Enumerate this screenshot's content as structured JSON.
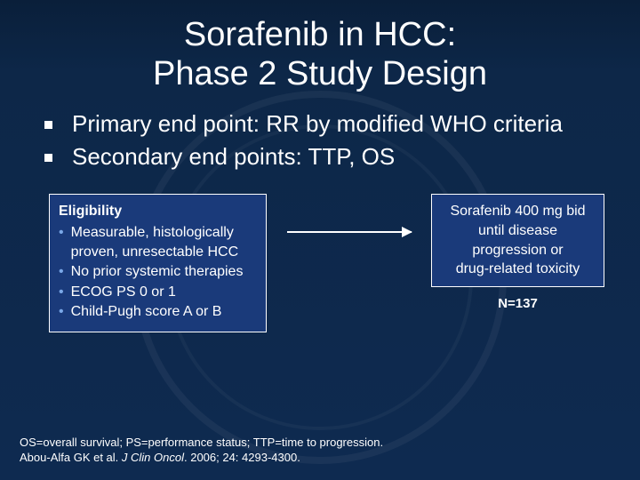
{
  "title_line1": "Sorafenib in HCC:",
  "title_line2": "Phase 2 Study Design",
  "bullets": [
    "Primary end point: RR by modified WHO criteria",
    "Secondary end points: TTP, OS"
  ],
  "eligibility": {
    "heading": "Eligibility",
    "items": [
      "Measurable, histologically proven, unresectable HCC",
      "No prior systemic therapies",
      "ECOG PS 0 or 1",
      "Child-Pugh score A or B"
    ]
  },
  "treatment": {
    "line1": "Sorafenib 400 mg bid",
    "line2": "until disease",
    "line3": "progression or",
    "line4": "drug-related toxicity",
    "n_label": "N=137"
  },
  "footnote": {
    "abbrev": "OS=overall survival; PS=performance status; TTP=time to progression.",
    "cite_author": "Abou-Alfa GK et al. ",
    "cite_journal": "J Clin Oncol",
    "cite_tail": ". 2006; 24: 4293-4300."
  },
  "colors": {
    "box_bg": "#1a3a7a",
    "sub_bullet": "#7aa8e8"
  }
}
